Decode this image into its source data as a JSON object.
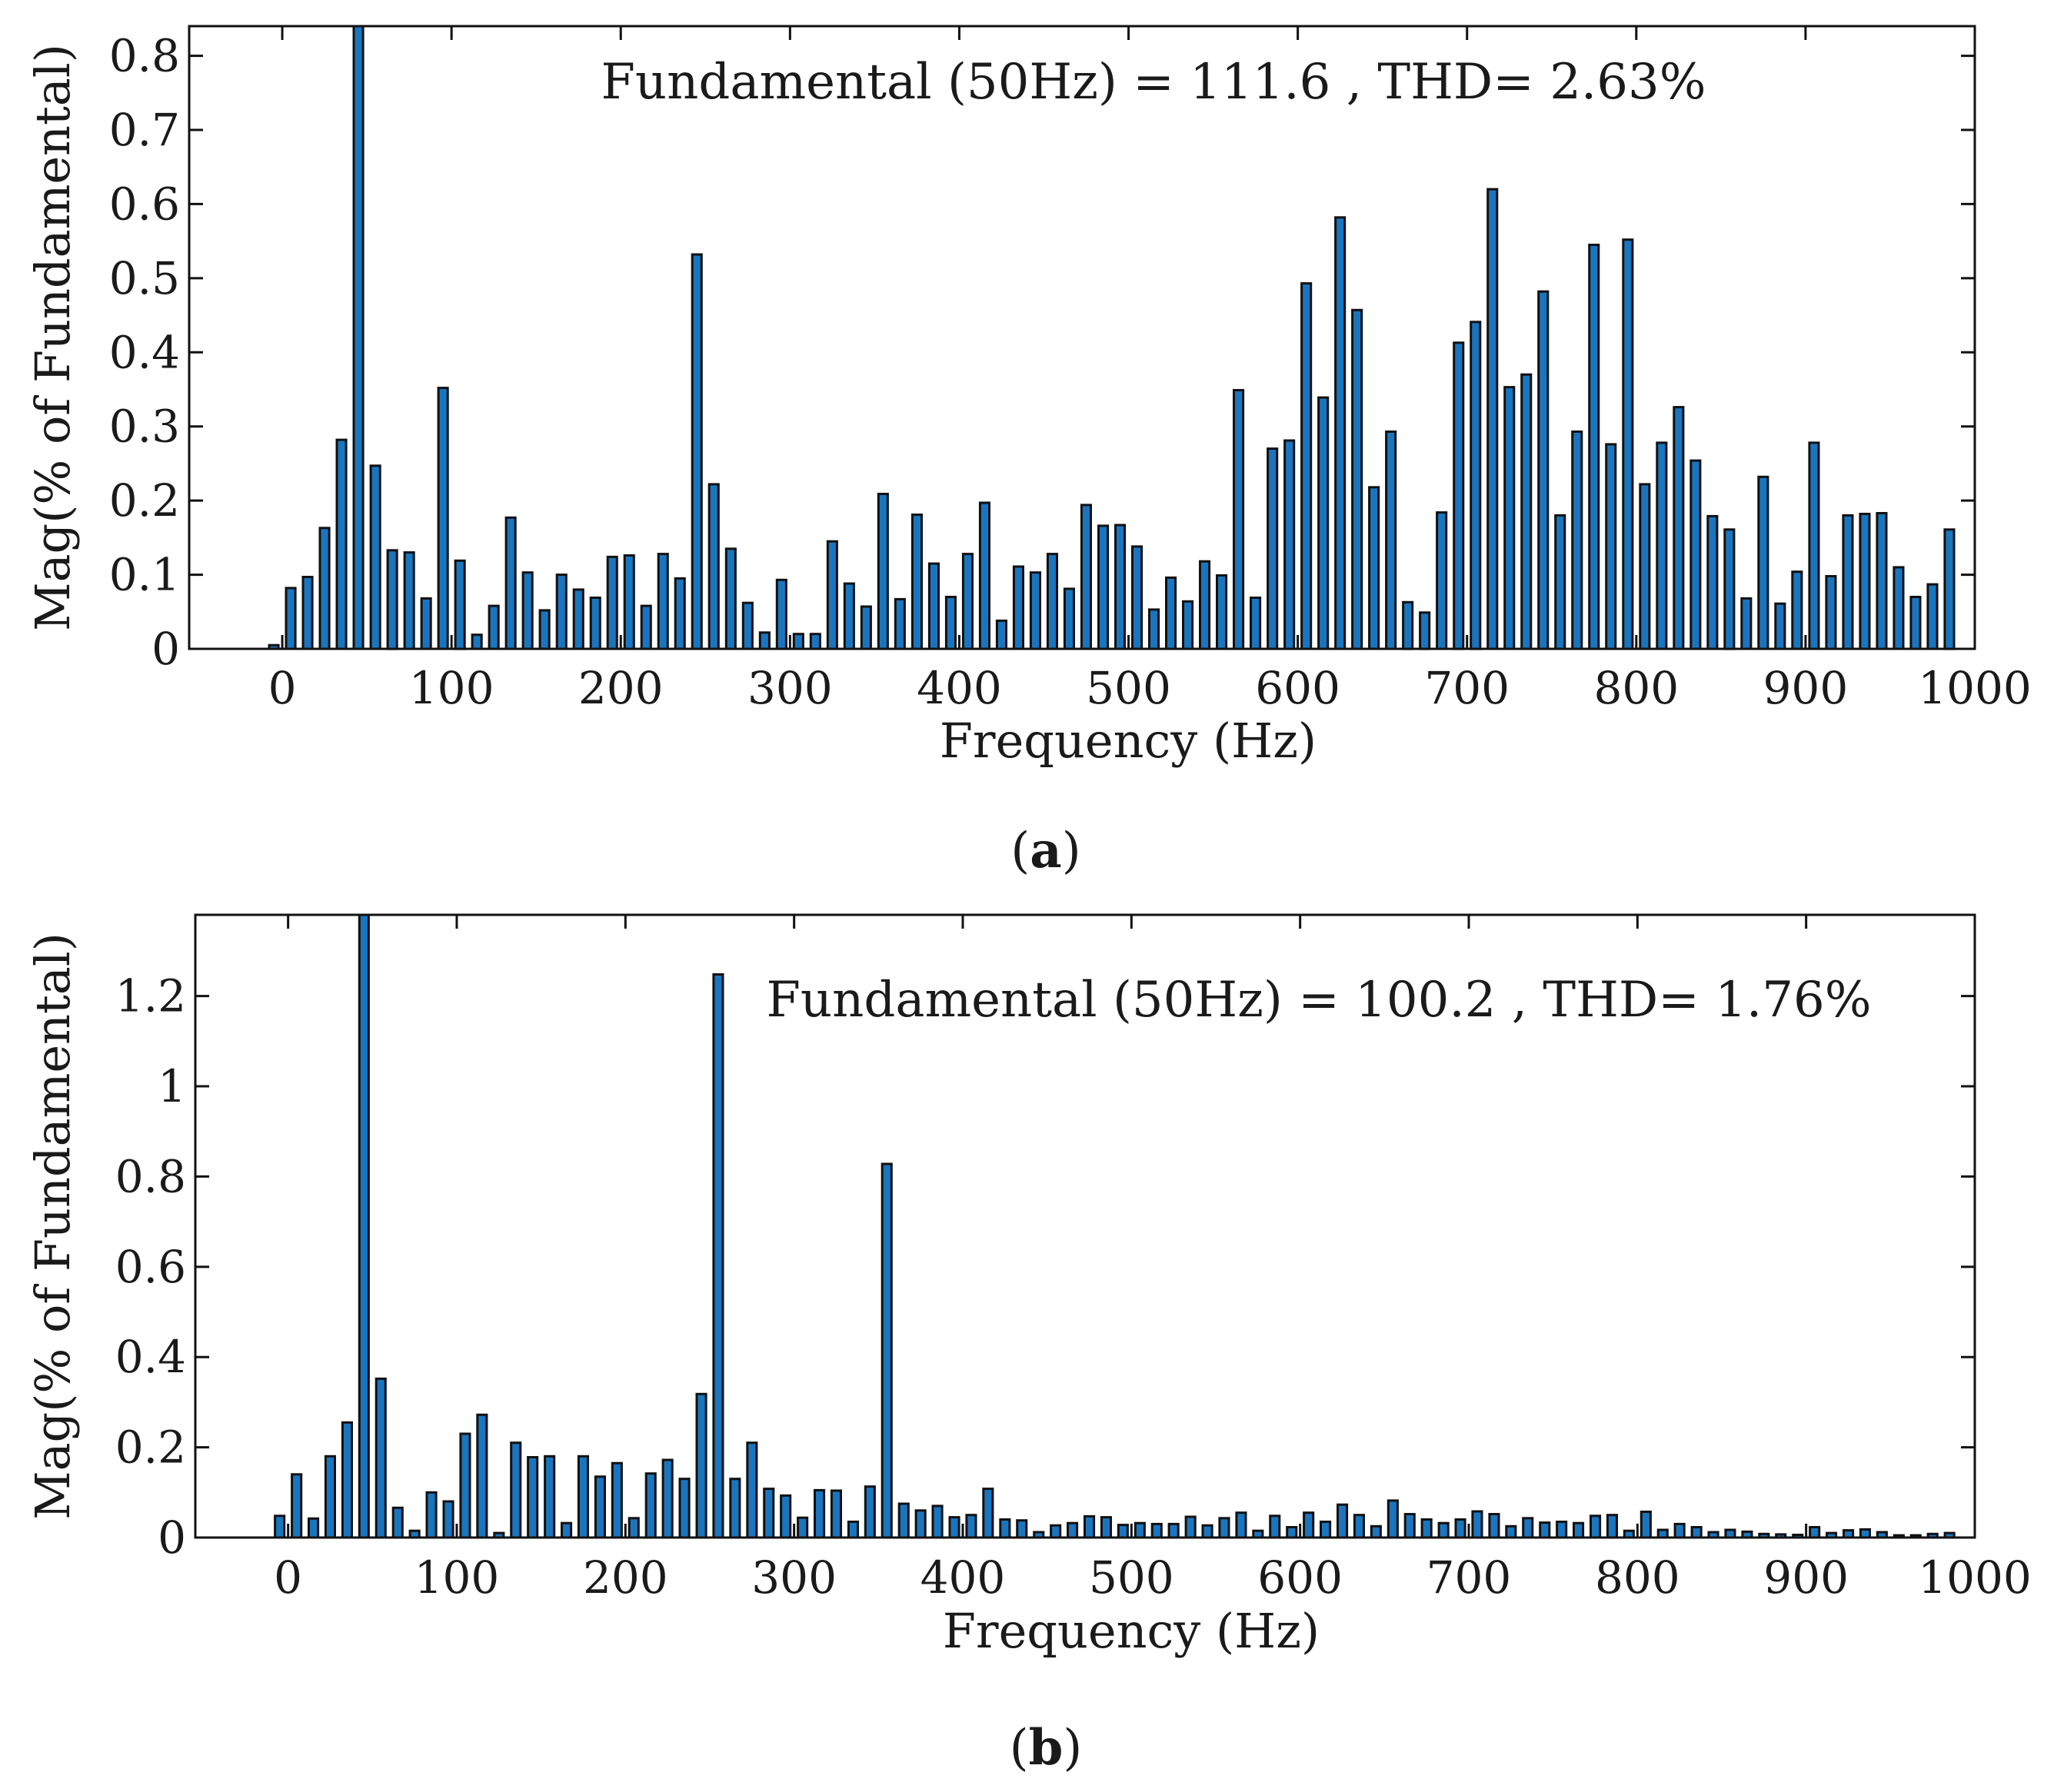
{
  "chart_data": [
    {
      "panel": "a",
      "panel_label": "(a)",
      "panel_label_letter": "a",
      "type": "bar",
      "annotation": "Fundamental (50Hz) = 111.6 , THD= 2.63%",
      "xlabel": "Frequency (Hz)",
      "ylabel": "Mag(% of Fundamental)",
      "xlim": [
        -55,
        1000
      ],
      "ylim": [
        0,
        0.84
      ],
      "xticks": [
        0,
        100,
        200,
        300,
        400,
        500,
        600,
        700,
        800,
        900,
        1000
      ],
      "xtick_labels": [
        "0",
        "100",
        "200",
        "300",
        "400",
        "500",
        "600",
        "700",
        "800",
        "900",
        "1000"
      ],
      "yticks": [
        0,
        0.1,
        0.2,
        0.3,
        0.4,
        0.5,
        0.6,
        0.7,
        0.8
      ],
      "ytick_labels": [
        "0",
        "0.1",
        "0.2",
        "0.3",
        "0.4",
        "0.5",
        "0.6",
        "0.7",
        "0.8"
      ],
      "x": [
        -5,
        5,
        15,
        25,
        35,
        45,
        55,
        65,
        75,
        85,
        95,
        105,
        115,
        125,
        135,
        145,
        155,
        165,
        175,
        185,
        195,
        205,
        215,
        225,
        235,
        245,
        255,
        265,
        275,
        285,
        295,
        305,
        315,
        325,
        335,
        345,
        355,
        365,
        375,
        385,
        395,
        405,
        415,
        425,
        435,
        445,
        455,
        465,
        475,
        485,
        495,
        505,
        515,
        525,
        535,
        545,
        555,
        565,
        575,
        585,
        595,
        605,
        615,
        625,
        635,
        645,
        655,
        665,
        675,
        685,
        695,
        705,
        715,
        725,
        735,
        745,
        755,
        765,
        775,
        785,
        795,
        805,
        815,
        825,
        835,
        845,
        855,
        865,
        875,
        885,
        895,
        905,
        915,
        925,
        935,
        945,
        955,
        965,
        975,
        985,
        995
      ],
      "values": [
        0.005,
        0.082,
        0.097,
        0.163,
        0.282,
        0.84,
        0.247,
        0.133,
        0.13,
        0.068,
        0.352,
        0.119,
        0.019,
        0.058,
        0.177,
        0.103,
        0.052,
        0.1,
        0.08,
        0.069,
        0.124,
        0.126,
        0.058,
        0.128,
        0.095,
        0.532,
        0.222,
        0.135,
        0.062,
        0.022,
        0.093,
        0.02,
        0.02,
        0.145,
        0.088,
        0.057,
        0.209,
        0.067,
        0.181,
        0.115,
        0.07,
        0.128,
        0.197,
        0.038,
        0.111,
        0.103,
        0.128,
        0.081,
        0.194,
        0.166,
        0.167,
        0.138,
        0.053,
        0.096,
        0.064,
        0.118,
        0.099,
        0.349,
        0.069,
        0.27,
        0.281,
        0.493,
        0.339,
        0.582,
        0.457,
        0.218,
        0.293,
        0.063,
        0.049,
        0.184,
        0.413,
        0.441,
        0.62,
        0.353,
        0.37,
        0.482,
        0.18,
        0.293,
        0.545,
        0.276,
        0.552,
        0.222,
        0.278,
        0.326,
        0.254,
        0.179,
        0.161,
        0.068,
        0.232,
        0.061,
        0.104,
        0.278,
        0.098,
        0.18,
        0.182,
        0.183,
        0.11,
        0.07,
        0.087,
        0.161,
        0.0
      ]
    },
    {
      "panel": "b",
      "panel_label": "(b)",
      "panel_label_letter": "b",
      "type": "bar",
      "annotation": "Fundamental (50Hz) = 100.2 , THD= 1.76%",
      "xlabel": "Frequency (Hz)",
      "ylabel": "Mag(% of Fundamental)",
      "xlim": [
        -55,
        1000
      ],
      "ylim": [
        0,
        1.38
      ],
      "xticks": [
        0,
        100,
        200,
        300,
        400,
        500,
        600,
        700,
        800,
        900,
        1000
      ],
      "xtick_labels": [
        "0",
        "100",
        "200",
        "300",
        "400",
        "500",
        "600",
        "700",
        "800",
        "900",
        "1000"
      ],
      "yticks": [
        0,
        0.2,
        0.4,
        0.6,
        0.8,
        1,
        1.2
      ],
      "ytick_labels": [
        "0",
        "0.2",
        "0.4",
        "0.6",
        "0.8",
        "1",
        "1.2"
      ],
      "x": [
        -5,
        5,
        15,
        25,
        35,
        45,
        55,
        65,
        75,
        85,
        95,
        105,
        115,
        125,
        135,
        145,
        155,
        165,
        175,
        185,
        195,
        205,
        215,
        225,
        235,
        245,
        255,
        265,
        275,
        285,
        295,
        305,
        315,
        325,
        335,
        345,
        355,
        365,
        375,
        385,
        395,
        405,
        415,
        425,
        435,
        445,
        455,
        465,
        475,
        485,
        495,
        505,
        515,
        525,
        535,
        545,
        555,
        565,
        575,
        585,
        595,
        605,
        615,
        625,
        635,
        645,
        655,
        665,
        675,
        685,
        695,
        705,
        715,
        725,
        735,
        745,
        755,
        765,
        775,
        785,
        795,
        805,
        815,
        825,
        835,
        845,
        855,
        865,
        875,
        885,
        895,
        905,
        915,
        925,
        935,
        945,
        955,
        965,
        975,
        985,
        995
      ],
      "values": [
        0.048,
        0.14,
        0.042,
        0.18,
        0.255,
        1.38,
        0.352,
        0.066,
        0.015,
        0.1,
        0.08,
        0.23,
        0.272,
        0.01,
        0.21,
        0.178,
        0.18,
        0.032,
        0.18,
        0.135,
        0.165,
        0.043,
        0.142,
        0.172,
        0.13,
        0.318,
        1.248,
        0.13,
        0.21,
        0.108,
        0.093,
        0.044,
        0.105,
        0.104,
        0.035,
        0.113,
        0.828,
        0.075,
        0.06,
        0.07,
        0.045,
        0.05,
        0.108,
        0.04,
        0.038,
        0.012,
        0.027,
        0.032,
        0.047,
        0.045,
        0.028,
        0.032,
        0.03,
        0.03,
        0.046,
        0.027,
        0.043,
        0.055,
        0.015,
        0.048,
        0.023,
        0.055,
        0.035,
        0.073,
        0.05,
        0.025,
        0.082,
        0.052,
        0.04,
        0.032,
        0.04,
        0.058,
        0.052,
        0.025,
        0.043,
        0.033,
        0.035,
        0.032,
        0.048,
        0.05,
        0.015,
        0.057,
        0.017,
        0.03,
        0.023,
        0.012,
        0.017,
        0.013,
        0.008,
        0.007,
        0.006,
        0.023,
        0.01,
        0.016,
        0.018,
        0.012,
        0.005,
        0.005,
        0.008,
        0.01,
        0.0
      ]
    }
  ]
}
